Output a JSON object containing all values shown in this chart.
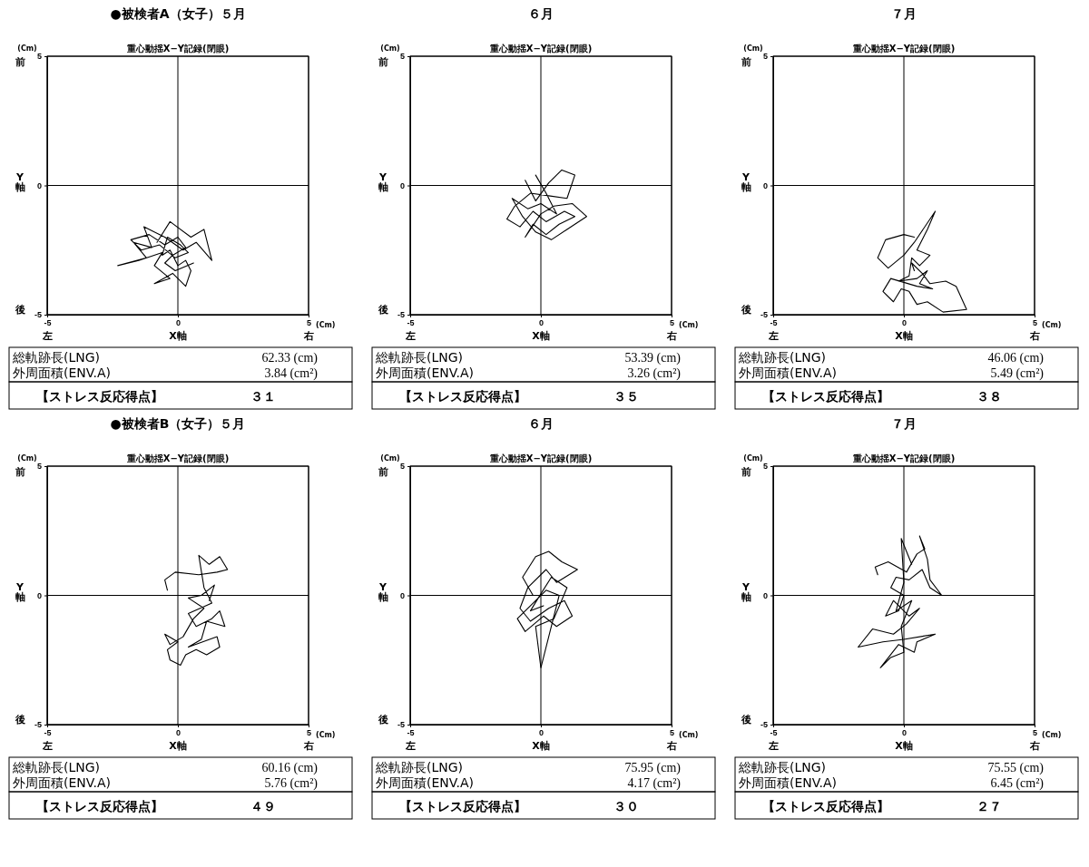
{
  "chart_data": [
    {
      "type": "line",
      "title": "●被検者A（女子）５月",
      "subtitle": "重心動揺X−Y記録(閉眼)",
      "xlabel": "X軸",
      "ylabel": "Y軸",
      "xlim": [
        -5,
        5
      ],
      "ylim": [
        -5,
        5
      ],
      "xticks": [
        -5,
        0,
        5
      ],
      "yticks": [
        -5,
        0,
        5
      ],
      "grid": true,
      "annotations": [
        "(Cm)",
        "(Cm)",
        "前",
        "後",
        "左",
        "右",
        "総軌跡長(LNG)",
        "62.33 (cm)",
        "外周面積(ENV.A)",
        "3.84 (cm²)",
        "【ストレス反応得点】",
        "３１"
      ],
      "series": [
        {
          "color": "#000000",
          "x": [
            -0.8,
            -0.3,
            0.5,
            1.0,
            1.3,
            0.7,
            0.2,
            -0.5,
            -1.3,
            -1.0,
            -1.7,
            -1.2,
            -2.3,
            -1.5,
            -0.6,
            -0.9,
            -0.3,
            -0.9,
            -0.2,
            0.3,
            0.5,
            0.3,
            0.0,
            -0.3,
            -0.6,
            -0.4,
            0.1,
            0.4,
            -0.1,
            -0.7,
            -1.4,
            -1.8,
            -1.1,
            -0.5,
            0.0,
            0.3,
            -0.2,
            -0.5,
            -0.1,
            0.6
          ],
          "values": [
            -2.2,
            -1.4,
            -2.0,
            -1.7,
            -2.9,
            -2.2,
            -2.5,
            -2.0,
            -1.6,
            -2.4,
            -2.2,
            -2.8,
            -3.1,
            -2.9,
            -2.6,
            -3.1,
            -3.6,
            -3.8,
            -3.4,
            -3.9,
            -3.3,
            -2.9,
            -3.1,
            -2.5,
            -2.7,
            -2.0,
            -2.3,
            -2.6,
            -2.8,
            -2.3,
            -2.5,
            -2.1,
            -1.9,
            -2.3,
            -2.0,
            -2.4,
            -2.7,
            -3.0,
            -3.3,
            -3.0
          ]
        }
      ]
    },
    {
      "type": "line",
      "title": "６月",
      "subtitle": "重心動揺X−Y記録(閉眼)",
      "xlabel": "X軸",
      "ylabel": "Y軸",
      "xlim": [
        -5,
        5
      ],
      "ylim": [
        -5,
        5
      ],
      "xticks": [
        -5,
        0,
        5
      ],
      "yticks": [
        -5,
        0,
        5
      ],
      "grid": true,
      "annotations": [
        "(Cm)",
        "(Cm)",
        "前",
        "後",
        "左",
        "右",
        "総軌跡長(LNG)",
        "53.39 (cm)",
        "外周面積(ENV.A)",
        "3.26 (cm²)",
        "【ストレス反応得点】",
        "３５"
      ],
      "series": [
        {
          "color": "#000000",
          "x": [
            -0.6,
            -0.2,
            0.3,
            0.8,
            1.3,
            1.0,
            0.3,
            -0.4,
            -1.0,
            -1.3,
            -0.8,
            -0.3,
            0.2,
            0.9,
            1.3,
            0.7,
            0.2,
            -0.3,
            -0.6,
            0.0,
            0.5,
            1.2,
            1.75,
            1.0,
            0.4,
            -0.2,
            -0.7,
            -1.1,
            -0.5,
            0.0,
            0.6,
            0.2,
            -0.2
          ],
          "values": [
            0.2,
            -0.6,
            0.1,
            0.6,
            0.4,
            -0.5,
            -0.4,
            -0.3,
            -0.8,
            -1.3,
            -1.6,
            -1.0,
            -1.4,
            -1.0,
            -1.2,
            -1.5,
            -1.9,
            -1.5,
            -2.0,
            -1.1,
            -0.8,
            -0.7,
            -1.2,
            -1.7,
            -2.1,
            -1.8,
            -1.2,
            -0.5,
            -0.9,
            -0.7,
            -1.1,
            -0.3,
            0.4
          ]
        }
      ]
    },
    {
      "type": "line",
      "title": "７月",
      "subtitle": "重心動揺X−Y記録(閉眼)",
      "xlabel": "X軸",
      "ylabel": "Y軸",
      "xlim": [
        -5,
        5
      ],
      "ylim": [
        -5,
        5
      ],
      "xticks": [
        -5,
        0,
        5
      ],
      "yticks": [
        -5,
        0,
        5
      ],
      "grid": true,
      "annotations": [
        "(Cm)",
        "(Cm)",
        "前",
        "後",
        "左",
        "右",
        "総軌跡長(LNG)",
        "46.06 (cm)",
        "外周面積(ENV.A)",
        "5.49 (cm²)",
        "【ストレス反応得点】",
        "３８"
      ],
      "series": [
        {
          "color": "#000000",
          "x": [
            0.4,
            0.0,
            -0.7,
            -1.0,
            -0.6,
            0.0,
            0.4,
            1.2,
            0.9,
            0.5,
            1.0,
            0.6,
            0.3,
            0.2,
            -0.2,
            0.5,
            0.9,
            0.6,
            1.1,
            0.5,
            -0.5,
            -0.8,
            -0.4,
            -0.1,
            0.2,
            0.5,
            0.9,
            1.5,
            2.4,
            2.0,
            1.6,
            1.0,
            0.7,
            0.3,
            0.4
          ],
          "values": [
            -2.0,
            -1.9,
            -2.1,
            -2.8,
            -3.2,
            -2.7,
            -2.2,
            -1.0,
            -1.7,
            -2.5,
            -2.7,
            -3.1,
            -2.8,
            -3.5,
            -3.7,
            -3.6,
            -3.3,
            -3.8,
            -4.0,
            -3.9,
            -3.6,
            -4.1,
            -4.5,
            -4.0,
            -4.1,
            -4.6,
            -4.5,
            -4.9,
            -4.8,
            -3.9,
            -3.7,
            -3.8,
            -3.4,
            -3.0,
            -3.3
          ]
        }
      ]
    },
    {
      "type": "line",
      "title": "●被検者B（女子）５月",
      "subtitle": "重心動揺X−Y記録(閉眼)",
      "xlabel": "X軸",
      "ylabel": "Y軸",
      "xlim": [
        -5,
        5
      ],
      "ylim": [
        -5,
        5
      ],
      "xticks": [
        -5,
        0,
        5
      ],
      "yticks": [
        -5,
        0,
        5
      ],
      "grid": true,
      "annotations": [
        "(Cm)",
        "(Cm)",
        "前",
        "後",
        "左",
        "右",
        "総軌跡長(LNG)",
        "60.16 (cm)",
        "外周面積(ENV.A)",
        "5.76 (cm²)",
        "【ストレス反応得点】",
        "４９"
      ],
      "series": [
        {
          "color": "#000000",
          "x": [
            -0.4,
            -0.5,
            -0.1,
            0.8,
            1.5,
            1.9,
            1.6,
            1.2,
            0.8,
            1.0,
            1.3,
            0.4,
            0.7,
            1.3,
            1.6,
            1.8,
            1.1,
            0.9,
            0.4,
            1.5,
            1.6,
            1.1,
            0.7,
            0.3,
            0.1,
            -0.3,
            -0.4,
            0.0,
            -0.5,
            -0.3,
            0.2,
            0.6,
            1.0,
            0.4,
            0.9,
            1.4,
            1.2
          ],
          "values": [
            0.2,
            0.6,
            0.9,
            0.8,
            0.9,
            1.0,
            1.5,
            1.2,
            1.55,
            0.3,
            -0.3,
            -0.7,
            -1.2,
            -0.9,
            -0.6,
            -1.2,
            -1.0,
            -1.7,
            -2.0,
            -1.6,
            -2.0,
            -2.3,
            -2.1,
            -2.3,
            -2.7,
            -2.5,
            -2.1,
            -1.8,
            -1.5,
            -1.9,
            -1.6,
            -0.9,
            -0.5,
            -0.1,
            0.0,
            0.4,
            -0.2
          ]
        }
      ]
    },
    {
      "type": "line",
      "title": "６月",
      "subtitle": "重心動揺X−Y記録(閉眼)",
      "xlabel": "X軸",
      "ylabel": "Y軸",
      "xlim": [
        -5,
        5
      ],
      "ylim": [
        -5,
        5
      ],
      "xticks": [
        -5,
        0,
        5
      ],
      "yticks": [
        -5,
        0,
        5
      ],
      "grid": true,
      "annotations": [
        "(Cm)",
        "(Cm)",
        "前",
        "後",
        "左",
        "右",
        "総軌跡長(LNG)",
        "75.95 (cm)",
        "外周面積(ENV.A)",
        "4.17 (cm²)",
        "【ストレス反応得点】",
        "３０"
      ],
      "series": [
        {
          "color": "#000000",
          "x": [
            -0.3,
            -0.7,
            -0.2,
            0.3,
            0.8,
            1.4,
            0.6,
            0.2,
            -0.5,
            -0.8,
            -0.4,
            0.3,
            0.9,
            1.2,
            0.6,
            0.1,
            -0.6,
            -0.9,
            -0.3,
            0.2,
            0.7,
            0.3,
            0.0,
            -0.2,
            0.5,
            1.0,
            0.4,
            -0.1,
            -0.4,
            0.1
          ],
          "values": [
            0.0,
            0.7,
            1.5,
            1.7,
            1.3,
            1.0,
            0.5,
            1.0,
            0.3,
            -0.5,
            -1.0,
            -0.5,
            -0.2,
            -0.8,
            -1.2,
            -0.8,
            -1.4,
            -0.9,
            -0.3,
            0.2,
            0.0,
            -1.6,
            -2.8,
            -1.2,
            -0.9,
            0.3,
            0.7,
            -0.1,
            -0.6,
            -0.4
          ]
        }
      ]
    },
    {
      "type": "line",
      "title": "７月",
      "subtitle": "重心動揺X−Y記録(閉眼)",
      "xlabel": "X軸",
      "ylabel": "Y軸",
      "xlim": [
        -5,
        5
      ],
      "ylim": [
        -5,
        5
      ],
      "xticks": [
        -5,
        0,
        5
      ],
      "yticks": [
        -5,
        0,
        5
      ],
      "grid": true,
      "annotations": [
        "(Cm)",
        "(Cm)",
        "前",
        "後",
        "左",
        "右",
        "総軌跡長(LNG)",
        "75.55 (cm)",
        "外周面積(ENV.A)",
        "6.45 (cm²)",
        "【ストレス反応得点】",
        "２７"
      ],
      "series": [
        {
          "color": "#000000",
          "x": [
            -1.0,
            -1.1,
            -0.6,
            0.1,
            0.5,
            0.8,
            0.6,
            0.9,
            1.0,
            1.45,
            1.0,
            0.7,
            0.2,
            -0.3,
            -0.5,
            0.0,
            -0.2,
            -0.7,
            -0.4,
            0.2,
            0.6,
            0.1,
            -0.4,
            -1.2,
            -1.75,
            -0.8,
            0.0,
            1.2,
            0.5,
            0.4,
            -0.2,
            -0.9,
            -0.5,
            0.0,
            -0.1,
            0.3,
            -0.3,
            0.0,
            -0.1,
            0.3
          ],
          "values": [
            0.8,
            1.1,
            1.3,
            0.9,
            1.6,
            1.8,
            2.3,
            1.4,
            0.6,
            0.0,
            0.3,
            1.0,
            0.6,
            0.7,
            0.3,
            0.0,
            -0.6,
            -0.8,
            -0.2,
            -0.8,
            -0.5,
            -1.1,
            -1.5,
            -1.3,
            -2.0,
            -1.8,
            -1.7,
            -1.5,
            -1.8,
            -2.2,
            -1.9,
            -2.8,
            -2.4,
            -2.2,
            -1.2,
            -0.2,
            -0.6,
            0.5,
            2.2,
            1.2
          ]
        }
      ]
    }
  ]
}
